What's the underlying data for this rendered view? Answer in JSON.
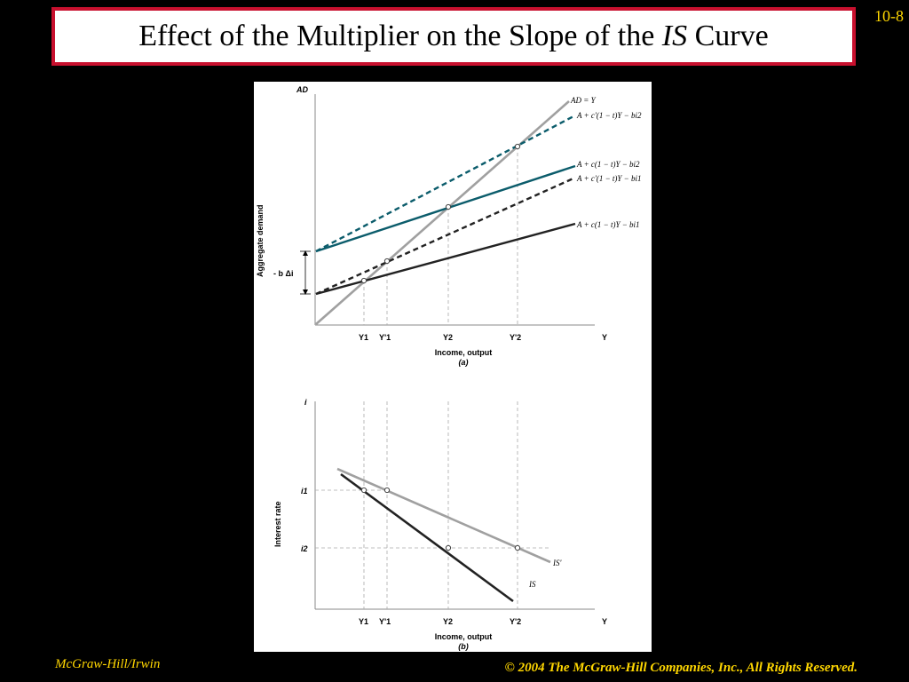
{
  "slide": {
    "number": "10-8",
    "title_prefix": "Effect of the Multiplier on the Slope of the ",
    "title_italic": "IS",
    "title_suffix": " Curve",
    "footer_left": "McGraw-Hill/Irwin",
    "footer_right": "© 2004 The McGraw-Hill Companies, Inc., All Rights Reserved."
  },
  "panel_a": {
    "y_axis_top": "AD",
    "y_axis_label": "Aggregate demand",
    "delta_label": "- b Δi",
    "x_ticks": [
      "Y1",
      "Y'1",
      "Y2",
      "Y'2",
      "Y"
    ],
    "x_label": "Income, output",
    "sub_label": "(a)",
    "curves": [
      {
        "label": "AD = Y",
        "color": "#a0a0a0",
        "style": "solid"
      },
      {
        "label": "A + c'(1 − t)Y − bi2",
        "color": "#0b5c6b",
        "style": "dashed"
      },
      {
        "label": "A + c(1 − t)Y − bi2",
        "color": "#0b5c6b",
        "style": "solid"
      },
      {
        "label": "A + c'(1 − t)Y − bi1",
        "color": "#222222",
        "style": "dashed"
      },
      {
        "label": "A + c(1 − t)Y − bi1",
        "color": "#222222",
        "style": "solid"
      }
    ]
  },
  "panel_b": {
    "y_axis_top": "i",
    "y_axis_label": "Interest rate",
    "y_ticks": [
      "i1",
      "i2"
    ],
    "x_ticks": [
      "Y1",
      "Y'1",
      "Y2",
      "Y'2",
      "Y"
    ],
    "x_label": "Income, output",
    "sub_label": "(b)",
    "curves": [
      {
        "label": "IS'",
        "color": "#a0a0a0"
      },
      {
        "label": "IS",
        "color": "#222222"
      }
    ]
  }
}
